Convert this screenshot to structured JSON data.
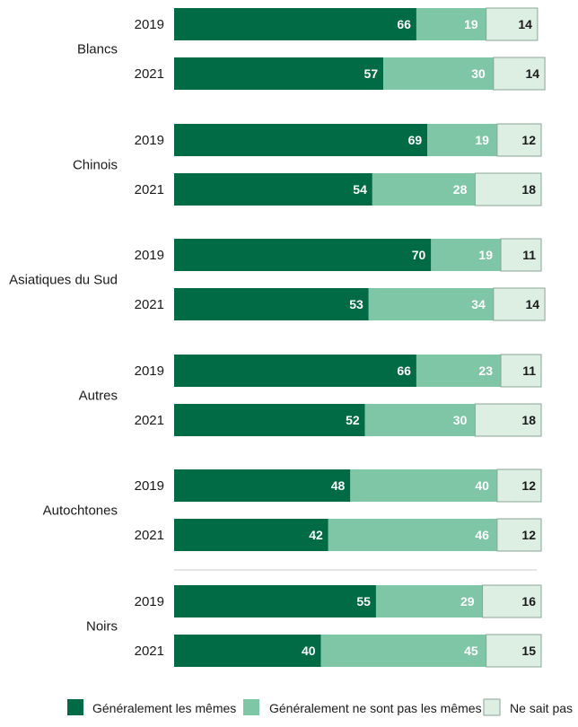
{
  "chart_data": {
    "type": "bar",
    "orientation": "horizontal",
    "stacked": true,
    "x_range": [
      0,
      100
    ],
    "groups": [
      {
        "label": "Blancs",
        "rows": [
          {
            "year": "2019",
            "values": [
              66,
              19,
              14
            ]
          },
          {
            "year": "2021",
            "values": [
              57,
              30,
              14
            ]
          }
        ]
      },
      {
        "label": "Chinois",
        "rows": [
          {
            "year": "2019",
            "values": [
              69,
              19,
              12
            ]
          },
          {
            "year": "2021",
            "values": [
              54,
              28,
              18
            ]
          }
        ]
      },
      {
        "label": "Asiatiques du Sud",
        "rows": [
          {
            "year": "2019",
            "values": [
              70,
              19,
              11
            ]
          },
          {
            "year": "2021",
            "values": [
              53,
              34,
              14
            ]
          }
        ]
      },
      {
        "label": "Autres",
        "rows": [
          {
            "year": "2019",
            "values": [
              66,
              23,
              11
            ]
          },
          {
            "year": "2021",
            "values": [
              52,
              30,
              18
            ]
          }
        ]
      },
      {
        "label": "Autochtones",
        "rows": [
          {
            "year": "2019",
            "values": [
              48,
              40,
              12
            ]
          },
          {
            "year": "2021",
            "values": [
              42,
              46,
              12
            ]
          }
        ]
      },
      {
        "label": "Noirs",
        "rows": [
          {
            "year": "2019",
            "values": [
              55,
              29,
              16
            ]
          },
          {
            "year": "2021",
            "values": [
              40,
              45,
              15
            ]
          }
        ]
      }
    ],
    "series": [
      {
        "name": "Généralement les mêmes",
        "color": "#006b45"
      },
      {
        "name": "Généralement ne sont pas les mêmes",
        "color": "#7fc6a6"
      },
      {
        "name": "Ne sait pas",
        "color": "#dcefe2"
      }
    ],
    "separator_before_group": "Noirs",
    "legend_position": "bottom"
  }
}
